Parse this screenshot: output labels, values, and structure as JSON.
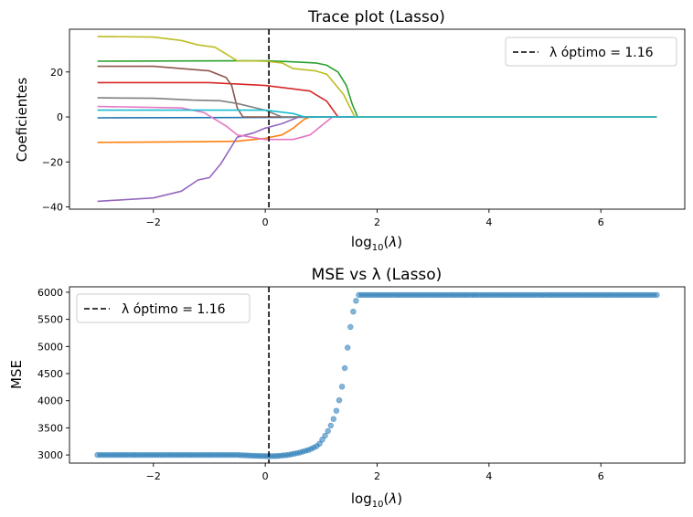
{
  "chart_data": [
    {
      "type": "line",
      "title": "Trace plot (Lasso)",
      "xlabel": "log10(λ)",
      "ylabel": "Coeficientes",
      "xlim": [
        -3.5,
        7.5
      ],
      "ylim": [
        -41,
        39
      ],
      "xticks": [
        -2,
        0,
        2,
        4,
        6
      ],
      "yticks": [
        -40,
        -20,
        0,
        20
      ],
      "grid": false,
      "legend_position": "top-right",
      "vline": {
        "x": 0.065,
        "label": "λ óptimo = 1.16",
        "style": "dashed",
        "color": "#000000"
      },
      "series": [
        {
          "color": "#1f77b4",
          "points": [
            [
              -3,
              -0.4
            ],
            [
              0.5,
              -0.2
            ],
            [
              1.5,
              0
            ],
            [
              7,
              0
            ]
          ]
        },
        {
          "color": "#ff7f0e",
          "points": [
            [
              -3,
              -11.3
            ],
            [
              -1,
              -11
            ],
            [
              -0.5,
              -10.8
            ],
            [
              0,
              -9.5
            ],
            [
              0.3,
              -8
            ],
            [
              0.5,
              -5
            ],
            [
              0.7,
              -1
            ],
            [
              0.8,
              0
            ],
            [
              7,
              0
            ]
          ]
        },
        {
          "color": "#2ca02c",
          "points": [
            [
              -3,
              24.8
            ],
            [
              0,
              25
            ],
            [
              0.5,
              24.5
            ],
            [
              0.9,
              24
            ],
            [
              1.1,
              23
            ],
            [
              1.3,
              20
            ],
            [
              1.45,
              14
            ],
            [
              1.55,
              6
            ],
            [
              1.65,
              0
            ],
            [
              7,
              0
            ]
          ]
        },
        {
          "color": "#d62728",
          "points": [
            [
              -3,
              15.3
            ],
            [
              -1,
              15.3
            ],
            [
              0,
              14
            ],
            [
              0.5,
              12.5
            ],
            [
              0.8,
              11.5
            ],
            [
              0.9,
              10
            ],
            [
              1.1,
              7
            ],
            [
              1.3,
              0
            ],
            [
              7,
              0
            ]
          ]
        },
        {
          "color": "#9467bd",
          "points": [
            [
              -3,
              -37.5
            ],
            [
              -2,
              -36
            ],
            [
              -1.5,
              -33
            ],
            [
              -1.2,
              -28
            ],
            [
              -1,
              -27
            ],
            [
              -0.8,
              -21
            ],
            [
              -0.5,
              -9
            ],
            [
              -0.2,
              -7
            ],
            [
              0,
              -5
            ],
            [
              0.3,
              -3
            ],
            [
              0.5,
              -1
            ],
            [
              0.6,
              0
            ],
            [
              7,
              0
            ]
          ]
        },
        {
          "color": "#8c564b",
          "points": [
            [
              -3,
              22.5
            ],
            [
              -2,
              22.5
            ],
            [
              -1,
              20.5
            ],
            [
              -0.7,
              17.5
            ],
            [
              -0.6,
              14
            ],
            [
              -0.5,
              4
            ],
            [
              -0.4,
              0
            ],
            [
              7,
              0
            ]
          ]
        },
        {
          "color": "#e377c2",
          "points": [
            [
              -3,
              4.7
            ],
            [
              -1.5,
              4
            ],
            [
              -1.1,
              2
            ],
            [
              -0.7,
              -4
            ],
            [
              -0.5,
              -8
            ],
            [
              0,
              -10
            ],
            [
              0.5,
              -10
            ],
            [
              0.8,
              -8
            ],
            [
              1,
              -4
            ],
            [
              1.2,
              0
            ],
            [
              7,
              0
            ]
          ]
        },
        {
          "color": "#7f7f7f",
          "points": [
            [
              -3,
              8.5
            ],
            [
              -2,
              8.3
            ],
            [
              -1.3,
              7.5
            ],
            [
              -0.8,
              7.2
            ],
            [
              -0.5,
              6
            ],
            [
              0,
              3
            ],
            [
              0.2,
              1
            ],
            [
              0.3,
              0
            ],
            [
              7,
              0
            ]
          ]
        },
        {
          "color": "#bcbd22",
          "points": [
            [
              -3,
              35.8
            ],
            [
              -2,
              35.5
            ],
            [
              -1.5,
              34
            ],
            [
              -1.2,
              32
            ],
            [
              -0.9,
              31
            ],
            [
              -0.7,
              28
            ],
            [
              -0.5,
              25
            ],
            [
              0,
              24.8
            ],
            [
              0.3,
              24
            ],
            [
              0.5,
              21.5
            ],
            [
              0.9,
              20.5
            ],
            [
              1.1,
              19
            ],
            [
              1.4,
              10
            ],
            [
              1.6,
              0
            ],
            [
              7,
              0
            ]
          ]
        },
        {
          "color": "#17becf",
          "points": [
            [
              -3,
              3
            ],
            [
              -0.5,
              3
            ],
            [
              0,
              3
            ],
            [
              0.5,
              1.5
            ],
            [
              0.7,
              0
            ],
            [
              7,
              0
            ]
          ]
        }
      ]
    },
    {
      "type": "scatter",
      "title": "MSE vs λ (Lasso)",
      "xlabel": "log10(λ)",
      "ylabel": "MSE",
      "xlim": [
        -3.5,
        7.5
      ],
      "ylim": [
        2850,
        6100
      ],
      "xticks": [
        -2,
        0,
        2,
        4,
        6
      ],
      "yticks": [
        3000,
        3500,
        4000,
        4500,
        5000,
        5500,
        6000
      ],
      "grid": false,
      "legend_position": "top-left",
      "vline": {
        "x": 0.065,
        "label": "λ óptimo = 1.16",
        "style": "dashed",
        "color": "#000000"
      },
      "point_color": "#1f77b4",
      "point_count": 200,
      "curve": [
        [
          -3,
          3000
        ],
        [
          -0.5,
          3000
        ],
        [
          -0.2,
          2985
        ],
        [
          0,
          2980
        ],
        [
          0.2,
          2980
        ],
        [
          0.4,
          3000
        ],
        [
          0.6,
          3040
        ],
        [
          0.8,
          3100
        ],
        [
          0.95,
          3180
        ],
        [
          1.1,
          3400
        ],
        [
          1.2,
          3600
        ],
        [
          1.3,
          3900
        ],
        [
          1.38,
          4300
        ],
        [
          1.45,
          4800
        ],
        [
          1.5,
          5200
        ],
        [
          1.55,
          5550
        ],
        [
          1.6,
          5750
        ],
        [
          1.65,
          5950
        ],
        [
          7,
          5950
        ]
      ]
    }
  ]
}
